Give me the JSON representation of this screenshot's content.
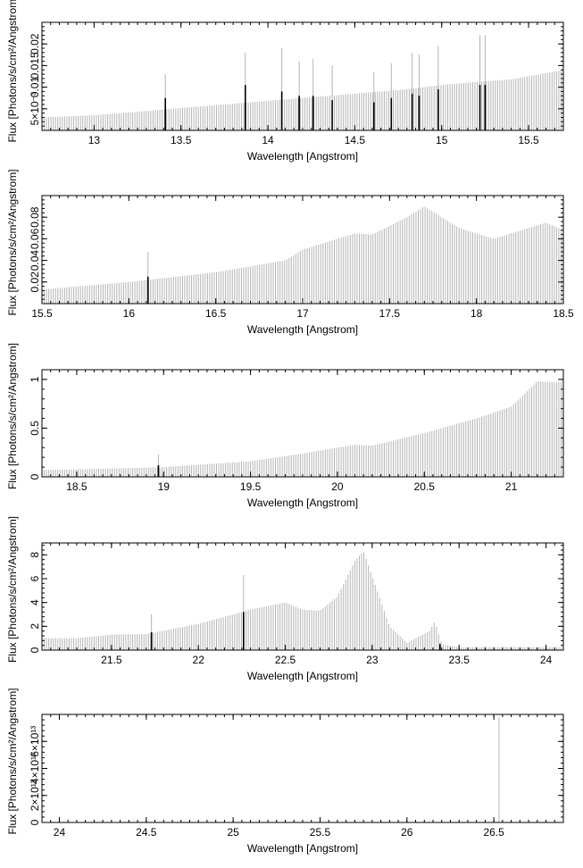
{
  "colors": {
    "bars": "#b4b4b4",
    "highlight": "#000000",
    "frame": "#000000",
    "background": "#ffffff"
  },
  "chart_data": [
    {
      "type": "bar",
      "xlabel": "Wavelength [Angstrom]",
      "ylabel": "Flux [Photons/s/cm²/Angstrom]",
      "xlim": [
        12.7,
        15.7
      ],
      "ylim": [
        0.0,
        0.025
      ],
      "xticks": [
        13,
        13.5,
        14,
        14.5,
        15,
        15.5
      ],
      "xtick_labels": [
        "13",
        "13.5",
        "14",
        "14.5",
        "15",
        "15.5"
      ],
      "yticks": [
        0.005,
        0.01,
        0.015,
        0.02
      ],
      "ytick_labels": [
        "5×10⁻³",
        "0.01",
        "0.015",
        "0.02"
      ],
      "grid": false,
      "continuum": [
        [
          12.7,
          0.003
        ],
        [
          13.0,
          0.0035
        ],
        [
          13.3,
          0.0045
        ],
        [
          13.6,
          0.0055
        ],
        [
          13.9,
          0.0065
        ],
        [
          14.2,
          0.0075
        ],
        [
          14.5,
          0.0085
        ],
        [
          14.8,
          0.0095
        ],
        [
          15.0,
          0.0105
        ],
        [
          15.2,
          0.0112
        ],
        [
          15.4,
          0.0118
        ],
        [
          15.7,
          0.014
        ]
      ],
      "lines": [
        [
          13.41,
          0.0075
        ],
        [
          13.87,
          0.0105
        ],
        [
          14.08,
          0.009
        ],
        [
          14.18,
          0.008
        ],
        [
          14.26,
          0.008
        ],
        [
          14.37,
          0.007
        ],
        [
          14.61,
          0.0065
        ],
        [
          14.71,
          0.0075
        ],
        [
          14.83,
          0.0085
        ],
        [
          14.87,
          0.008
        ],
        [
          14.98,
          0.0095
        ],
        [
          15.22,
          0.0105
        ],
        [
          15.25,
          0.0105
        ]
      ],
      "line_peaks": [
        [
          13.41,
          0.013
        ],
        [
          13.87,
          0.018
        ],
        [
          14.08,
          0.019
        ],
        [
          14.18,
          0.016
        ],
        [
          14.26,
          0.0165
        ],
        [
          14.37,
          0.015
        ],
        [
          14.61,
          0.0135
        ],
        [
          14.71,
          0.0155
        ],
        [
          14.83,
          0.018
        ],
        [
          14.87,
          0.0175
        ],
        [
          14.98,
          0.0195
        ],
        [
          15.22,
          0.022
        ],
        [
          15.25,
          0.022
        ]
      ]
    },
    {
      "type": "bar",
      "xlabel": "Wavelength [Angstrom]",
      "ylabel": "Flux [Photons/s/cm²/Angstrom]",
      "xlim": [
        15.5,
        18.5
      ],
      "ylim": [
        0.0,
        0.1
      ],
      "xticks": [
        15.5,
        16,
        16.5,
        17,
        17.5,
        18,
        18.5
      ],
      "xtick_labels": [
        "15.5",
        "16",
        "16.5",
        "17",
        "17.5",
        "18",
        "18.5"
      ],
      "yticks": [
        0.02,
        0.04,
        0.06,
        0.08
      ],
      "ytick_labels": [
        "0.02",
        "0.04",
        "0.06",
        "0.08"
      ],
      "grid": false,
      "continuum": [
        [
          15.5,
          0.013
        ],
        [
          16.0,
          0.02
        ],
        [
          16.5,
          0.029
        ],
        [
          16.9,
          0.04
        ],
        [
          17.0,
          0.05
        ],
        [
          17.3,
          0.065
        ],
        [
          17.4,
          0.064
        ],
        [
          17.6,
          0.08
        ],
        [
          17.7,
          0.09
        ],
        [
          17.9,
          0.07
        ],
        [
          18.0,
          0.065
        ],
        [
          18.1,
          0.06
        ],
        [
          18.4,
          0.075
        ],
        [
          18.5,
          0.068
        ]
      ],
      "lines": [
        [
          16.11,
          0.025
        ]
      ],
      "line_peaks": [
        [
          16.11,
          0.048
        ]
      ]
    },
    {
      "type": "bar",
      "xlabel": "Wavelength [Angstrom]",
      "ylabel": "Flux [Photons/s/cm²/Angstrom]",
      "xlim": [
        18.3,
        21.3
      ],
      "ylim": [
        0.0,
        1.1
      ],
      "xticks": [
        18.5,
        19,
        19.5,
        20,
        20.5,
        21
      ],
      "xtick_labels": [
        "18.5",
        "19",
        "19.5",
        "20",
        "20.5",
        "21"
      ],
      "yticks": [
        0,
        0.5,
        1
      ],
      "ytick_labels": [
        "0",
        "0.5",
        "1"
      ],
      "grid": false,
      "continuum": [
        [
          18.3,
          0.07
        ],
        [
          18.7,
          0.085
        ],
        [
          19.0,
          0.1
        ],
        [
          19.5,
          0.16
        ],
        [
          19.8,
          0.24
        ],
        [
          20.1,
          0.33
        ],
        [
          20.2,
          0.32
        ],
        [
          20.5,
          0.45
        ],
        [
          20.8,
          0.6
        ],
        [
          21.0,
          0.72
        ],
        [
          21.15,
          0.98
        ],
        [
          21.3,
          0.97
        ]
      ],
      "lines": [
        [
          18.97,
          0.12
        ]
      ],
      "line_peaks": [
        [
          18.97,
          0.23
        ]
      ]
    },
    {
      "type": "bar",
      "xlabel": "Wavelength [Angstrom]",
      "ylabel": "Flux [Photons/s/cm²/Angstrom]",
      "xlim": [
        21.1,
        24.1
      ],
      "ylim": [
        0.0,
        9.0
      ],
      "xticks": [
        21.5,
        22,
        22.5,
        23,
        23.5,
        24
      ],
      "xtick_labels": [
        "21.5",
        "22",
        "22.5",
        "23",
        "23.5",
        "24"
      ],
      "yticks": [
        0,
        2,
        4,
        6,
        8
      ],
      "ytick_labels": [
        "0",
        "2",
        "4",
        "6",
        "8"
      ],
      "grid": false,
      "continuum": [
        [
          21.1,
          1.0
        ],
        [
          21.3,
          1.0
        ],
        [
          21.5,
          1.3
        ],
        [
          21.7,
          1.35
        ],
        [
          22.0,
          2.2
        ],
        [
          22.3,
          3.4
        ],
        [
          22.5,
          4.0
        ],
        [
          22.6,
          3.4
        ],
        [
          22.7,
          3.3
        ],
        [
          22.8,
          4.5
        ],
        [
          22.9,
          7.5
        ],
        [
          22.95,
          8.3
        ],
        [
          23.0,
          6.2
        ],
        [
          23.1,
          2.0
        ],
        [
          23.2,
          0.6
        ],
        [
          23.33,
          1.6
        ],
        [
          23.36,
          2.4
        ],
        [
          23.4,
          0.5
        ],
        [
          23.5,
          0.25
        ],
        [
          24.1,
          0.25
        ]
      ],
      "lines": [
        [
          21.73,
          1.5
        ],
        [
          22.26,
          3.2
        ],
        [
          23.39,
          0.5
        ]
      ],
      "line_peaks": [
        [
          21.73,
          3.0
        ],
        [
          22.26,
          6.3
        ],
        [
          23.39,
          0.6
        ]
      ]
    },
    {
      "type": "bar",
      "xlabel": "Wavelength [Angstrom]",
      "ylabel": "Flux [Photons/s/cm²/Angstrom]",
      "xlim": [
        23.9,
        26.9
      ],
      "ylim": [
        0.0,
        80000000000000.0
      ],
      "xticks": [
        24,
        24.5,
        25,
        25.5,
        26,
        26.5
      ],
      "xtick_labels": [
        "24",
        "24.5",
        "25",
        "25.5",
        "26",
        "26.5"
      ],
      "yticks": [
        0,
        20000000000000.0,
        40000000000000.0,
        60000000000000.0
      ],
      "ytick_labels": [
        "0",
        "2×10¹³",
        "4×10¹³",
        "6×10¹³"
      ],
      "grid": false,
      "continuum": [
        [
          23.9,
          0
        ],
        [
          26.9,
          0
        ]
      ],
      "lines": [],
      "line_peaks": [
        [
          26.53,
          78000000000000.0
        ]
      ]
    }
  ]
}
